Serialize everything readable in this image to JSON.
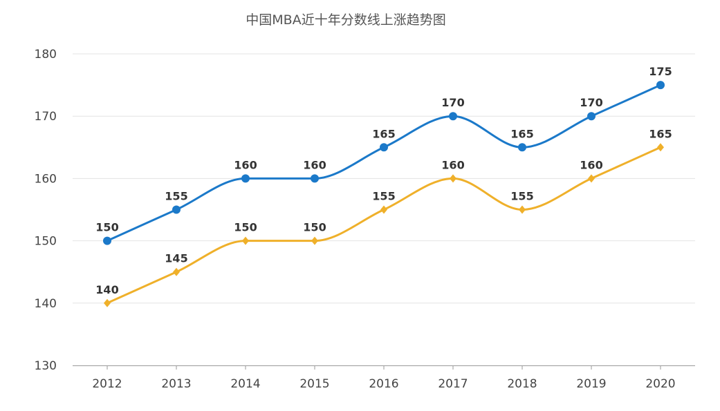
{
  "chart_data": {
    "type": "line",
    "title": "中国MBA近十年分数线上涨趋势图",
    "categories": [
      "2012",
      "2013",
      "2014",
      "2015",
      "2016",
      "2017",
      "2018",
      "2019",
      "2020"
    ],
    "ylim": [
      130,
      180
    ],
    "yticks": [
      130,
      140,
      150,
      160,
      170,
      180
    ],
    "grid": true,
    "smooth": true,
    "series": [
      {
        "values": [
          150,
          155,
          160,
          160,
          165,
          170,
          165,
          170,
          175
        ],
        "color": "#1b79c9",
        "marker": "circle"
      },
      {
        "values": [
          140,
          145,
          150,
          150,
          155,
          160,
          155,
          160,
          165
        ],
        "color": "#efb02a",
        "marker": "diamond"
      }
    ]
  }
}
